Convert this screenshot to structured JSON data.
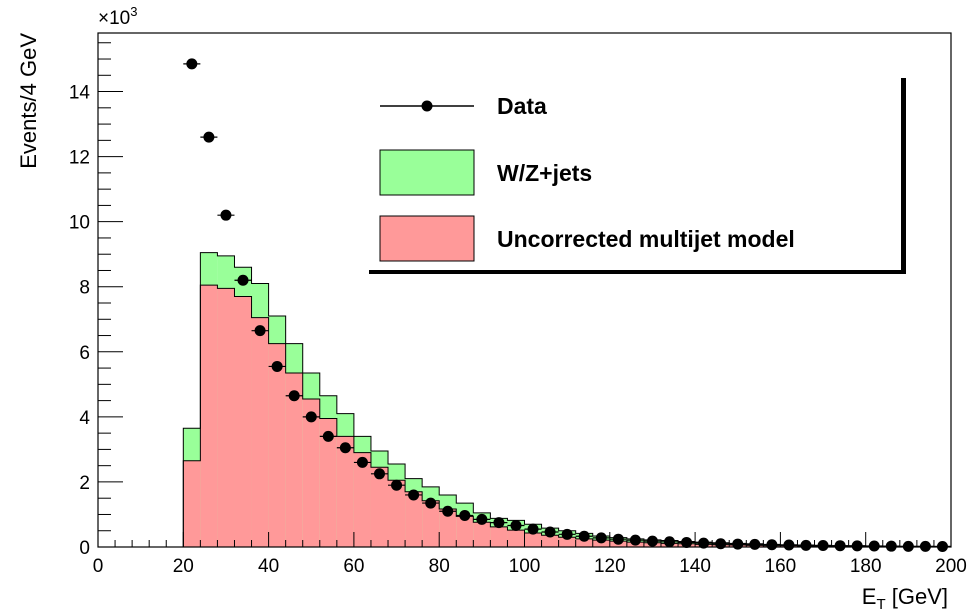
{
  "chart_data": {
    "type": "bar",
    "title": "",
    "xlabel": "E",
    "xlabel_sub": "T",
    "xlabel_unit": " [GeV]",
    "ylabel": "Events/4 GeV",
    "y_multiplier": "×10",
    "y_multiplier_exp": "3",
    "xlim": [
      0,
      200
    ],
    "ylim": [
      0,
      15.8
    ],
    "grid": false,
    "legend_position": "top-right",
    "x_ticks": [
      "0",
      "20",
      "40",
      "60",
      "80",
      "100",
      "120",
      "140",
      "160",
      "180",
      "200"
    ],
    "y_ticks": [
      "0",
      "2",
      "4",
      "6",
      "8",
      "10",
      "12",
      "14"
    ],
    "bin_edges": [
      20,
      24,
      28,
      32,
      36,
      40,
      44,
      48,
      52,
      56,
      60,
      64,
      68,
      72,
      76,
      80,
      84,
      88,
      92,
      96,
      100,
      104,
      108,
      112,
      116,
      120,
      124,
      128,
      132,
      136,
      140,
      144,
      148,
      152,
      156,
      160,
      164,
      168,
      172,
      176,
      180,
      184,
      188,
      192,
      196,
      200
    ],
    "series": [
      {
        "name": "Data",
        "kind": "points",
        "x": [
          22,
          26,
          30,
          34,
          38,
          42,
          46,
          50,
          54,
          58,
          62,
          66,
          70,
          74,
          78,
          82,
          86,
          90,
          94,
          98,
          102,
          106,
          110,
          114,
          118,
          122,
          126,
          130,
          134,
          138,
          142,
          146,
          150,
          154,
          158,
          162,
          166,
          170,
          174,
          178,
          182,
          186,
          190,
          194,
          198
        ],
        "values": [
          14.85,
          12.6,
          10.2,
          8.2,
          6.65,
          5.55,
          4.65,
          4.0,
          3.4,
          3.05,
          2.6,
          2.25,
          1.9,
          1.6,
          1.35,
          1.1,
          0.97,
          0.85,
          0.75,
          0.66,
          0.55,
          0.46,
          0.39,
          0.33,
          0.28,
          0.24,
          0.21,
          0.18,
          0.16,
          0.14,
          0.12,
          0.1,
          0.09,
          0.08,
          0.07,
          0.06,
          0.05,
          0.045,
          0.04,
          0.035,
          0.03,
          0.025,
          0.02,
          0.02,
          0.015
        ],
        "color": "#000000"
      },
      {
        "name": "W/Z+jets",
        "kind": "stacked_hist_total",
        "values": [
          3.65,
          9.05,
          8.95,
          8.6,
          8.1,
          7.1,
          6.25,
          5.35,
          4.65,
          4.1,
          3.4,
          2.95,
          2.55,
          2.1,
          1.85,
          1.6,
          1.35,
          1.05,
          0.88,
          0.82,
          0.7,
          0.58,
          0.5,
          0.42,
          0.34,
          0.29,
          0.25,
          0.22,
          0.2,
          0.17,
          0.15,
          0.13,
          0.11,
          0.1,
          0.08,
          0.07,
          0.06,
          0.05,
          0.04,
          0.04,
          0.03,
          0.03,
          0.02,
          0.02,
          0.02
        ],
        "color": "#99ff99"
      },
      {
        "name": "Uncorrected multijet model",
        "kind": "hist",
        "values": [
          2.65,
          8.05,
          7.95,
          7.7,
          7.05,
          6.25,
          5.35,
          4.55,
          3.95,
          3.4,
          2.9,
          2.45,
          2.05,
          1.7,
          1.42,
          1.17,
          0.94,
          0.76,
          0.62,
          0.52,
          0.43,
          0.36,
          0.3,
          0.25,
          0.21,
          0.18,
          0.15,
          0.13,
          0.11,
          0.1,
          0.08,
          0.07,
          0.06,
          0.05,
          0.04,
          0.04,
          0.03,
          0.03,
          0.02,
          0.02,
          0.02,
          0.01,
          0.01,
          0.01,
          0.01
        ],
        "color": "#ff9999"
      }
    ]
  }
}
